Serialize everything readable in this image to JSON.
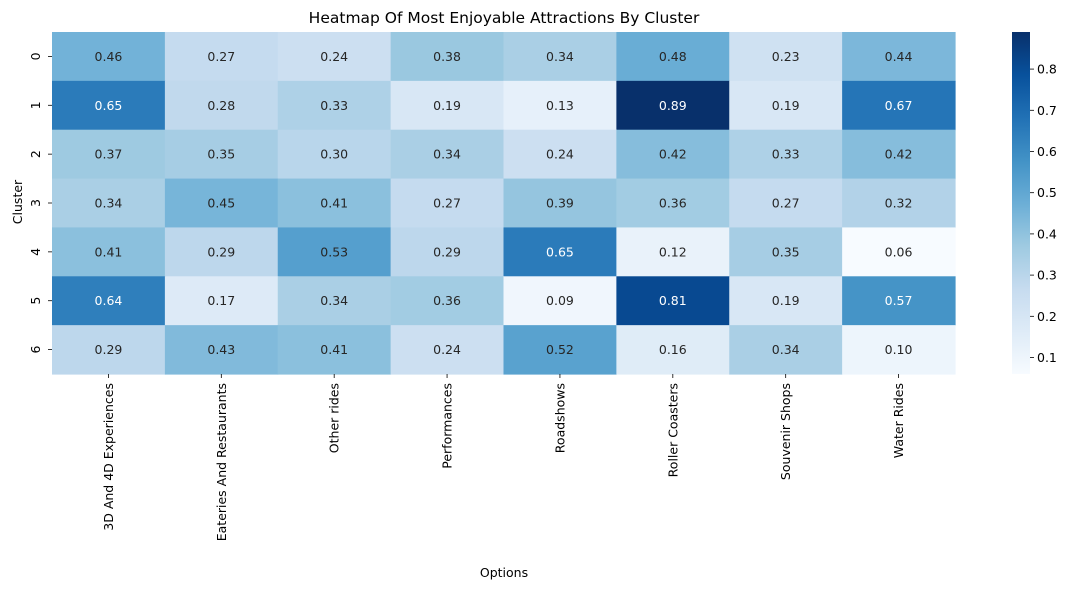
{
  "chart_data": {
    "type": "heatmap",
    "title": "Heatmap Of Most Enjoyable Attractions By Cluster",
    "xlabel": "Options",
    "ylabel": "Cluster",
    "x_categories": [
      "3D And 4D Experiences",
      "Eateries And Restaurants",
      "Other rides",
      "Performances",
      "Roadshows",
      "Roller Coasters",
      "Souvenir Shops",
      "Water Rides"
    ],
    "y_categories": [
      "0",
      "1",
      "2",
      "3",
      "4",
      "5",
      "6"
    ],
    "values": [
      [
        0.46,
        0.27,
        0.24,
        0.38,
        0.34,
        0.48,
        0.23,
        0.44
      ],
      [
        0.65,
        0.28,
        0.33,
        0.19,
        0.13,
        0.89,
        0.19,
        0.67
      ],
      [
        0.37,
        0.35,
        0.3,
        0.34,
        0.24,
        0.42,
        0.33,
        0.42
      ],
      [
        0.34,
        0.45,
        0.41,
        0.27,
        0.39,
        0.36,
        0.27,
        0.32
      ],
      [
        0.41,
        0.29,
        0.53,
        0.29,
        0.65,
        0.12,
        0.35,
        0.06
      ],
      [
        0.64,
        0.17,
        0.34,
        0.36,
        0.09,
        0.81,
        0.19,
        0.57
      ],
      [
        0.29,
        0.43,
        0.41,
        0.24,
        0.52,
        0.16,
        0.34,
        0.1
      ]
    ],
    "value_format": "2 decimals",
    "colormap": "Blues",
    "color_range": [
      0.06,
      0.89
    ],
    "colorbar_ticks": [
      "0.1",
      "0.2",
      "0.3",
      "0.4",
      "0.5",
      "0.6",
      "0.7",
      "0.8"
    ],
    "colorbar_tick_values": [
      0.1,
      0.2,
      0.3,
      0.4,
      0.5,
      0.6,
      0.7,
      0.8
    ],
    "grid": false,
    "colorbar_position": "right"
  }
}
